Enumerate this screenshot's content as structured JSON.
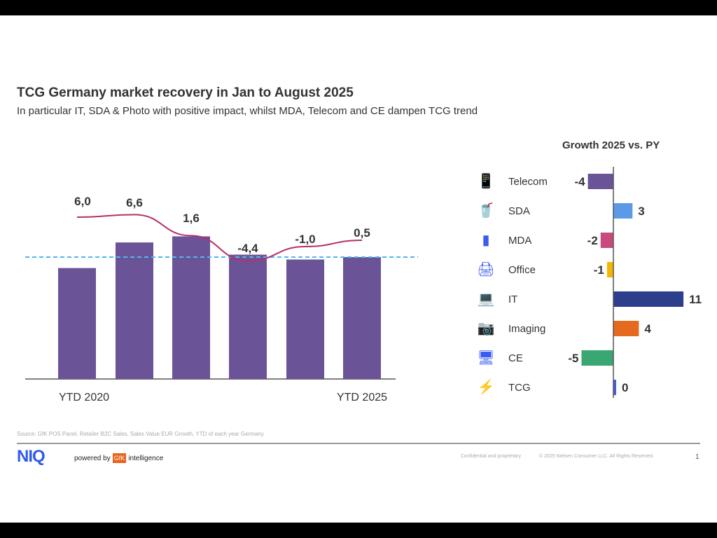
{
  "title": "TCG Germany market recovery in Jan to August 2025",
  "subtitle": "In particular IT, SDA & Photo with positive impact, whilst MDA, Telecom and CE dampen TCG trend",
  "footer": {
    "source": "Source: GfK POS Panel. Retailer B2C Sales, Sales Value EUR Growth, YTD of each year Germany",
    "powered_by": "powered by",
    "gfk": "GfK",
    "intelligence": "intelligence",
    "logo": "NIQ",
    "confidential": "Confidential and proprietary",
    "copyright": "© 2025 Nielsen Consumer LLC. All Rights Reserved.",
    "page": "1"
  },
  "chart_data": [
    {
      "type": "bar",
      "categories": [
        "YTD 2020",
        "",
        "",
        "",
        "",
        "YTD 2025"
      ],
      "values": [
        91,
        112,
        117,
        102,
        98,
        100
      ],
      "bar_color": "#6a5396",
      "line": {
        "values": [
          6.0,
          6.6,
          1.6,
          -4.4,
          -1.0,
          0.5
        ],
        "labels": [
          "6,0",
          "6,6",
          "1,6",
          "-4,4",
          "-1,0",
          "0,5"
        ],
        "color": "#b5306a"
      },
      "reference_line": {
        "value": 100,
        "style": "dashed",
        "color": "#4fb8ee"
      }
    },
    {
      "type": "bar",
      "orientation": "horizontal",
      "title": "Growth 2025 vs. PY",
      "categories": [
        "Telecom",
        "SDA",
        "MDA",
        "Office",
        "IT",
        "Imaging",
        "CE",
        "TCG"
      ],
      "values": [
        -4,
        3,
        -2,
        -1,
        11,
        4,
        -5,
        0
      ],
      "colors": [
        "#6a5396",
        "#5b9be6",
        "#c84a7c",
        "#f2b705",
        "#2d3e8c",
        "#e36a1e",
        "#3aa672",
        "#4a5fd6"
      ],
      "icons": [
        "phone-icon",
        "blender-icon",
        "fridge-icon",
        "printer-icon",
        "laptop-icon",
        "camera-icon",
        "desktop-icon",
        "lightning-icon"
      ]
    }
  ]
}
